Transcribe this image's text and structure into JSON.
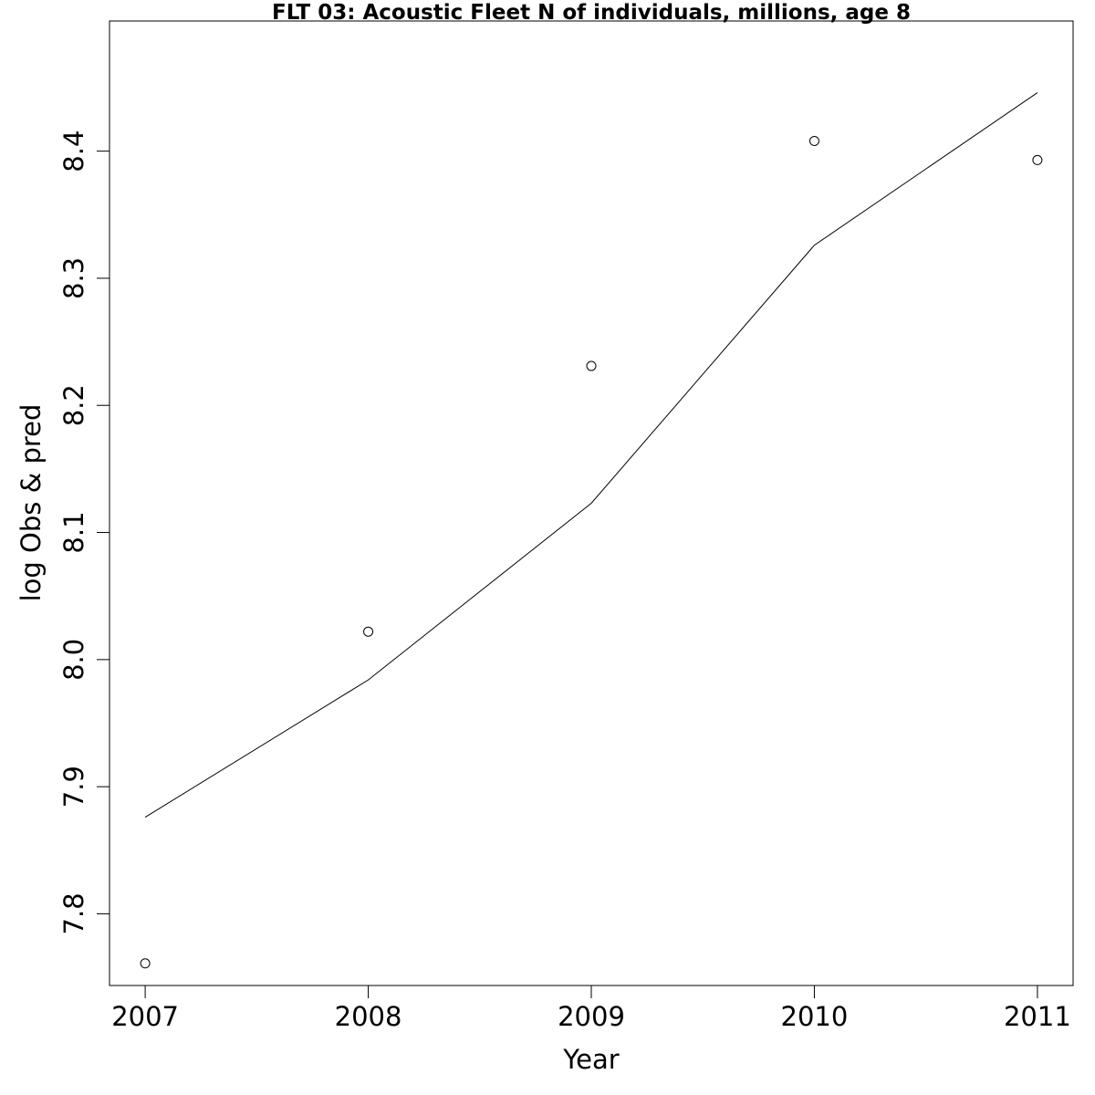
{
  "chart_data": {
    "type": "line",
    "title": "FLT 03: Acoustic Fleet  N of individuals, millions, age 8",
    "xlabel": "Year",
    "ylabel": "log Obs & pred",
    "xlim": [
      2006.84,
      2011.16
    ],
    "ylim": [
      7.7436,
      8.5024
    ],
    "x_ticks": [
      2007,
      2008,
      2009,
      2010,
      2011
    ],
    "y_ticks": [
      7.8,
      7.9,
      8.0,
      8.1,
      8.2,
      8.3,
      8.4
    ],
    "x_tick_labels": [
      "2007",
      "2008",
      "2009",
      "2010",
      "2011"
    ],
    "y_tick_labels": [
      "7.8",
      "7.9",
      "8.0",
      "8.1",
      "8.2",
      "8.3",
      "8.4"
    ],
    "grid": false,
    "legend": "none",
    "series": [
      {
        "kind": "points",
        "x": [
          2007,
          2008,
          2009,
          2010,
          2011
        ],
        "values": [
          7.761,
          8.022,
          8.231,
          8.408,
          8.393
        ]
      },
      {
        "kind": "line",
        "x": [
          2007,
          2008,
          2009,
          2010,
          2011
        ],
        "values": [
          7.876,
          7.984,
          8.123,
          8.326,
          8.446
        ]
      }
    ]
  }
}
